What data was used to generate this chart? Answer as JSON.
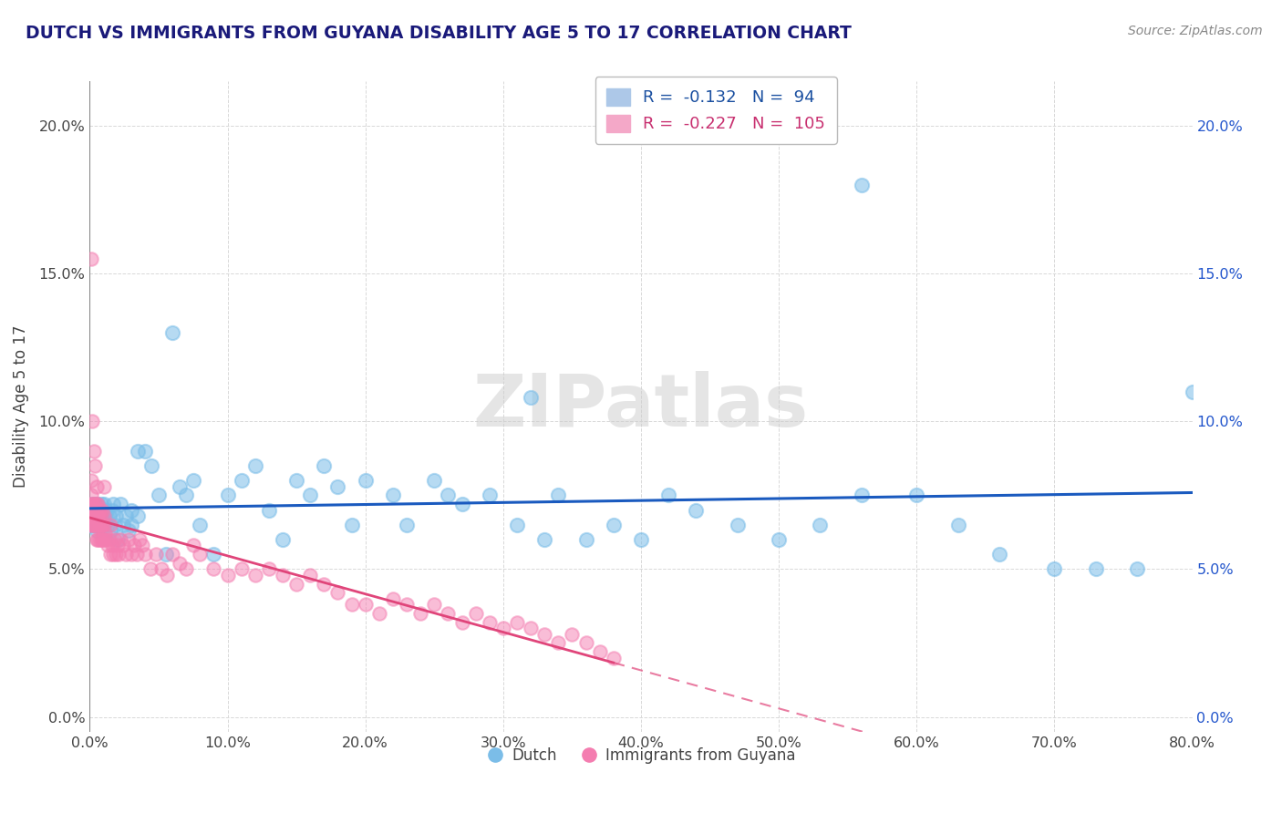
{
  "title": "DUTCH VS IMMIGRANTS FROM GUYANA DISABILITY AGE 5 TO 17 CORRELATION CHART",
  "source_text": "Source: ZipAtlas.com",
  "ylabel": "Disability Age 5 to 17",
  "xlabel_ticks": [
    "0.0%",
    "10.0%",
    "20.0%",
    "30.0%",
    "40.0%",
    "50.0%",
    "60.0%",
    "70.0%",
    "80.0%"
  ],
  "xlabel_vals": [
    0.0,
    0.1,
    0.2,
    0.3,
    0.4,
    0.5,
    0.6,
    0.7,
    0.8
  ],
  "ylabel_ticks": [
    "0.0%",
    "5.0%",
    "10.0%",
    "15.0%",
    "20.0%"
  ],
  "ylabel_vals": [
    0.0,
    0.05,
    0.1,
    0.15,
    0.2
  ],
  "xlim": [
    0.0,
    0.8
  ],
  "ylim": [
    -0.005,
    0.215
  ],
  "dutch_R": -0.132,
  "dutch_N": 94,
  "guyana_R": -0.227,
  "guyana_N": 105,
  "dutch_color": "#7bbde8",
  "guyana_color": "#f47db0",
  "dutch_label": "Dutch",
  "guyana_label": "Immigrants from Guyana",
  "watermark": "ZIPatlas",
  "background_color": "#ffffff",
  "grid_color": "#d8d8d8",
  "title_color": "#1a1a7a",
  "right_axis_color": "#2255cc",
  "dutch_line_color": "#1a5abf",
  "guyana_line_color": "#e0457a",
  "dutch_scatter_x": [
    0.001,
    0.001,
    0.001,
    0.002,
    0.002,
    0.002,
    0.003,
    0.003,
    0.003,
    0.004,
    0.004,
    0.004,
    0.005,
    0.005,
    0.005,
    0.005,
    0.006,
    0.006,
    0.006,
    0.007,
    0.007,
    0.007,
    0.008,
    0.008,
    0.009,
    0.009,
    0.01,
    0.01,
    0.011,
    0.012,
    0.013,
    0.014,
    0.015,
    0.016,
    0.017,
    0.018,
    0.019,
    0.02,
    0.022,
    0.024,
    0.026,
    0.028,
    0.03,
    0.035,
    0.04,
    0.045,
    0.05,
    0.06,
    0.065,
    0.07,
    0.08,
    0.09,
    0.1,
    0.11,
    0.12,
    0.13,
    0.14,
    0.15,
    0.16,
    0.17,
    0.18,
    0.19,
    0.2,
    0.22,
    0.23,
    0.25,
    0.26,
    0.27,
    0.29,
    0.31,
    0.33,
    0.34,
    0.36,
    0.38,
    0.4,
    0.42,
    0.44,
    0.47,
    0.5,
    0.53,
    0.56,
    0.6,
    0.63,
    0.66,
    0.7,
    0.73,
    0.76,
    0.8,
    0.56,
    0.32,
    0.03,
    0.035,
    0.055,
    0.075
  ],
  "dutch_scatter_y": [
    0.065,
    0.07,
    0.068,
    0.072,
    0.065,
    0.066,
    0.068,
    0.07,
    0.067,
    0.065,
    0.072,
    0.069,
    0.068,
    0.065,
    0.063,
    0.07,
    0.068,
    0.072,
    0.065,
    0.066,
    0.07,
    0.068,
    0.065,
    0.072,
    0.068,
    0.065,
    0.072,
    0.065,
    0.068,
    0.07,
    0.065,
    0.068,
    0.063,
    0.07,
    0.072,
    0.065,
    0.068,
    0.06,
    0.072,
    0.065,
    0.068,
    0.063,
    0.07,
    0.09,
    0.09,
    0.085,
    0.075,
    0.13,
    0.078,
    0.075,
    0.065,
    0.055,
    0.075,
    0.08,
    0.085,
    0.07,
    0.06,
    0.08,
    0.075,
    0.085,
    0.078,
    0.065,
    0.08,
    0.075,
    0.065,
    0.08,
    0.075,
    0.072,
    0.075,
    0.065,
    0.06,
    0.075,
    0.06,
    0.065,
    0.06,
    0.075,
    0.07,
    0.065,
    0.06,
    0.065,
    0.075,
    0.075,
    0.065,
    0.055,
    0.05,
    0.05,
    0.05,
    0.11,
    0.18,
    0.108,
    0.065,
    0.068,
    0.055,
    0.08
  ],
  "guyana_scatter_x": [
    0.001,
    0.001,
    0.001,
    0.001,
    0.001,
    0.002,
    0.002,
    0.002,
    0.002,
    0.003,
    0.003,
    0.003,
    0.003,
    0.004,
    0.004,
    0.004,
    0.004,
    0.005,
    0.005,
    0.005,
    0.005,
    0.006,
    0.006,
    0.006,
    0.006,
    0.007,
    0.007,
    0.007,
    0.007,
    0.008,
    0.008,
    0.008,
    0.009,
    0.009,
    0.009,
    0.01,
    0.01,
    0.01,
    0.011,
    0.012,
    0.013,
    0.014,
    0.015,
    0.016,
    0.017,
    0.018,
    0.019,
    0.02,
    0.021,
    0.022,
    0.024,
    0.026,
    0.028,
    0.03,
    0.032,
    0.034,
    0.036,
    0.038,
    0.04,
    0.044,
    0.048,
    0.052,
    0.056,
    0.06,
    0.065,
    0.07,
    0.075,
    0.08,
    0.09,
    0.1,
    0.11,
    0.12,
    0.13,
    0.14,
    0.15,
    0.16,
    0.17,
    0.18,
    0.19,
    0.2,
    0.21,
    0.22,
    0.23,
    0.24,
    0.25,
    0.26,
    0.27,
    0.28,
    0.29,
    0.3,
    0.31,
    0.32,
    0.33,
    0.34,
    0.35,
    0.36,
    0.37,
    0.38,
    0.01,
    0.015,
    0.001,
    0.002,
    0.003,
    0.004,
    0.005
  ],
  "guyana_scatter_y": [
    0.068,
    0.072,
    0.065,
    0.075,
    0.08,
    0.07,
    0.065,
    0.072,
    0.068,
    0.068,
    0.072,
    0.065,
    0.07,
    0.068,
    0.065,
    0.072,
    0.07,
    0.068,
    0.065,
    0.072,
    0.06,
    0.068,
    0.065,
    0.06,
    0.072,
    0.068,
    0.065,
    0.06,
    0.07,
    0.065,
    0.06,
    0.068,
    0.065,
    0.06,
    0.07,
    0.068,
    0.065,
    0.06,
    0.062,
    0.06,
    0.058,
    0.06,
    0.055,
    0.058,
    0.055,
    0.06,
    0.055,
    0.058,
    0.055,
    0.06,
    0.058,
    0.055,
    0.06,
    0.055,
    0.058,
    0.055,
    0.06,
    0.058,
    0.055,
    0.05,
    0.055,
    0.05,
    0.048,
    0.055,
    0.052,
    0.05,
    0.058,
    0.055,
    0.05,
    0.048,
    0.05,
    0.048,
    0.05,
    0.048,
    0.045,
    0.048,
    0.045,
    0.042,
    0.038,
    0.038,
    0.035,
    0.04,
    0.038,
    0.035,
    0.038,
    0.035,
    0.032,
    0.035,
    0.032,
    0.03,
    0.032,
    0.03,
    0.028,
    0.025,
    0.028,
    0.025,
    0.022,
    0.02,
    0.078,
    0.065,
    0.155,
    0.1,
    0.09,
    0.085,
    0.078
  ]
}
